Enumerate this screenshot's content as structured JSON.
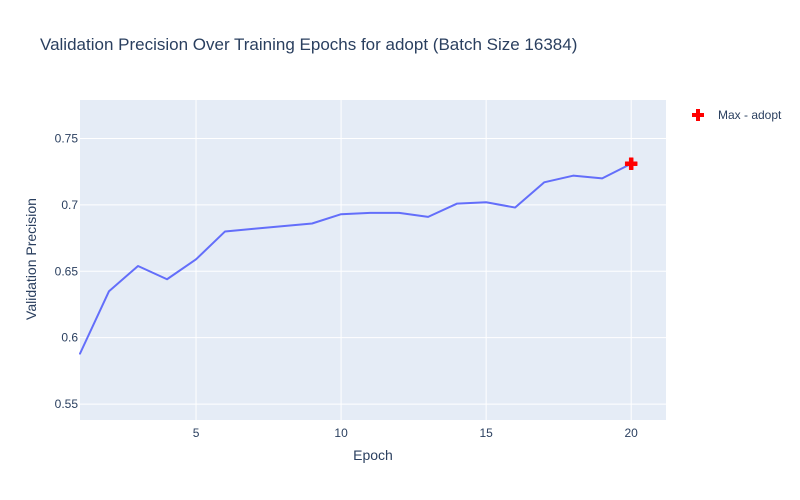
{
  "chart_data": {
    "type": "line",
    "title": "Validation Precision Over Training Epochs for adopt (Batch Size 16384)",
    "xlabel": "Epoch",
    "ylabel": "Validation Precision",
    "xlim": [
      1,
      21.2
    ],
    "ylim": [
      0.538,
      0.779
    ],
    "x_ticks": [
      5,
      10,
      15,
      20
    ],
    "x_tick_labels": [
      "5",
      "10",
      "15",
      "20"
    ],
    "y_ticks": [
      0.55,
      0.6,
      0.65,
      0.7,
      0.75
    ],
    "y_tick_labels": [
      "0.55",
      "0.6",
      "0.65",
      "0.7",
      "0.75"
    ],
    "grid": true,
    "legend_placement": "top-right outside plot",
    "colors": {
      "plot_background": "#e5ecf6",
      "grid": "#ffffff",
      "line": "#636efa",
      "marker": "#ff0000",
      "text": "#2a3f5f"
    },
    "series": [
      {
        "x": [
          1,
          2,
          3,
          4,
          5,
          6,
          7,
          8,
          9,
          10,
          11,
          12,
          13,
          14,
          15,
          16,
          17,
          18,
          19,
          20
        ],
        "y": [
          0.588,
          0.635,
          0.654,
          0.644,
          0.659,
          0.68,
          0.682,
          0.684,
          0.686,
          0.693,
          0.694,
          0.694,
          0.691,
          0.701,
          0.702,
          0.698,
          0.717,
          0.722,
          0.72,
          0.731
        ]
      },
      {
        "name": "Max - adopt",
        "type": "scatter",
        "marker": "cross",
        "x": [
          20
        ],
        "y": [
          0.731
        ]
      }
    ]
  }
}
